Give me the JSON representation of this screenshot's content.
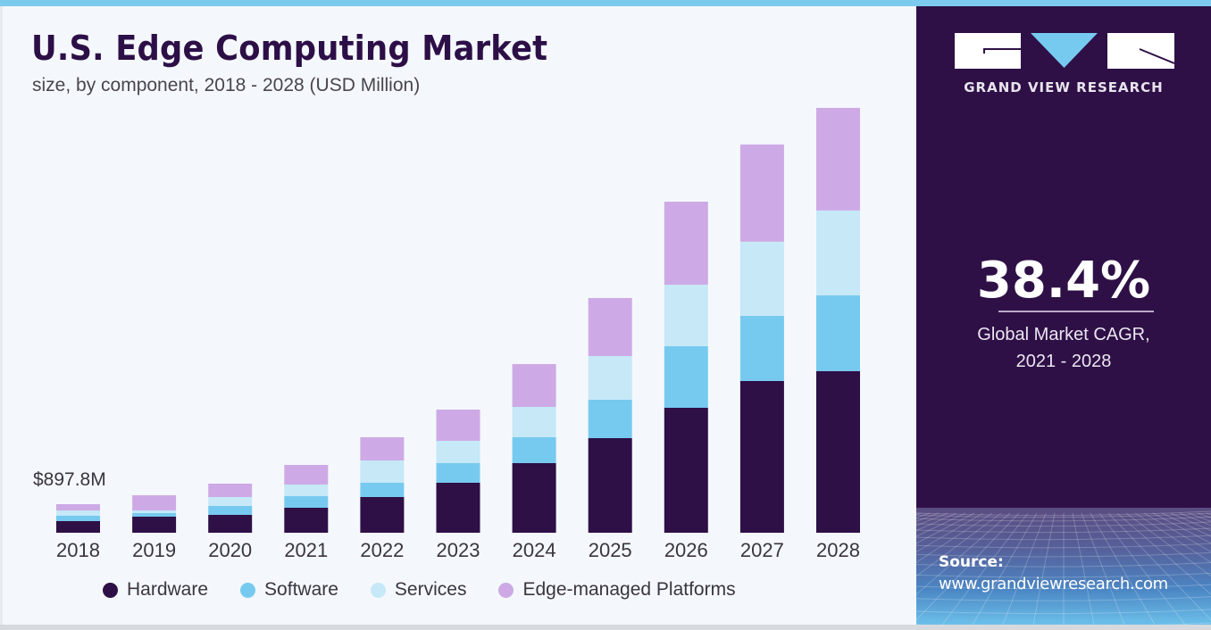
{
  "header": {
    "title": "U.S. Edge Computing Market",
    "subtitle": "size, by component, 2018 - 2028 (USD Million)"
  },
  "brand": {
    "name": "GRAND VIEW RESEARCH",
    "logo_icon": "gvr-logo-icon"
  },
  "highlight": {
    "cagr_value": "38.4%",
    "cagr_label_line1": "Global Market CAGR,",
    "cagr_label_line2": "2021 - 2028"
  },
  "source": {
    "label": "Source:",
    "url": "www.grandviewresearch.com"
  },
  "colors": {
    "hardware": "#2e0f46",
    "software": "#77caef",
    "services": "#c6e8f7",
    "edge_managed_platforms": "#cdaae6",
    "title": "#2d0f47",
    "panel": "#2e1046",
    "accent": "#7ccbef"
  },
  "chart_data": {
    "type": "bar",
    "stacked": true,
    "title": "U.S. Edge Computing Market",
    "subtitle": "size, by component, 2018 - 2028 (USD Million)",
    "xlabel": "",
    "ylabel": "USD Million",
    "categories": [
      "2018",
      "2019",
      "2020",
      "2021",
      "2022",
      "2023",
      "2024",
      "2025",
      "2026",
      "2027",
      "2028"
    ],
    "series": [
      {
        "name": "Hardware",
        "color": "#2e0f46",
        "values": [
          365,
          505,
          561,
          786,
          1122,
          1571,
          2189,
          2974,
          3928,
          4770,
          5079
        ]
      },
      {
        "name": "Software",
        "color": "#77caef",
        "values": [
          168,
          112,
          281,
          365,
          449,
          617,
          814,
          1207,
          1936,
          2048,
          2385
        ]
      },
      {
        "name": "Services",
        "color": "#c6e8f7",
        "values": [
          168,
          84,
          281,
          365,
          702,
          702,
          954,
          1375,
          1936,
          2329,
          2666
        ]
      },
      {
        "name": "Edge-managed Platforms",
        "color": "#cdaae6",
        "values": [
          197,
          477,
          421,
          617,
          730,
          982,
          1347,
          1824,
          2610,
          3059,
          3227
        ]
      }
    ],
    "ylim": [
      0,
      14000
    ],
    "grid": false,
    "y_axis_visible": false,
    "legend": {
      "position": "bottom",
      "entries": [
        "Hardware",
        "Software",
        "Services",
        "Edge-managed Platforms"
      ]
    },
    "annotations": [
      {
        "category": "2018",
        "text": "$897.8M"
      }
    ]
  }
}
